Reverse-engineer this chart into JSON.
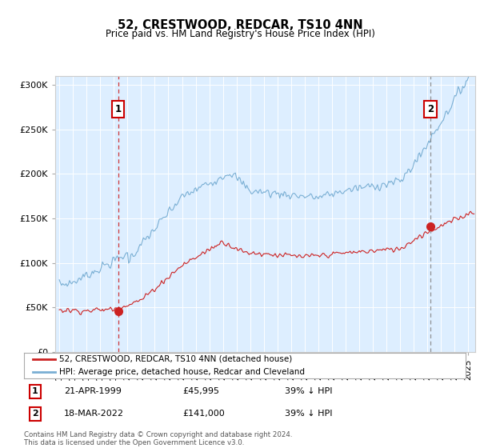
{
  "title": "52, CRESTWOOD, REDCAR, TS10 4NN",
  "subtitle": "Price paid vs. HM Land Registry's House Price Index (HPI)",
  "ylabel_ticks": [
    "£0",
    "£50K",
    "£100K",
    "£150K",
    "£200K",
    "£250K",
    "£300K"
  ],
  "ytick_values": [
    0,
    50000,
    100000,
    150000,
    200000,
    250000,
    300000
  ],
  "ylim": [
    0,
    310000
  ],
  "xlim_start": 1994.7,
  "xlim_end": 2025.5,
  "sale1_year": 1999.31,
  "sale1_price": 45995,
  "sale2_year": 2022.21,
  "sale2_price": 141000,
  "sale1_date": "21-APR-1999",
  "sale1_pct": "39% ↓ HPI",
  "sale2_date": "18-MAR-2022",
  "sale2_pct": "39% ↓ HPI",
  "hpi_color": "#7aafd4",
  "price_color": "#cc2222",
  "sale1_vline_color": "#cc2222",
  "sale2_vline_color": "#888888",
  "bg_color": "#ddeeff",
  "legend_label1": "52, CRESTWOOD, REDCAR, TS10 4NN (detached house)",
  "legend_label2": "HPI: Average price, detached house, Redcar and Cleveland",
  "footer": "Contains HM Land Registry data © Crown copyright and database right 2024.\nThis data is licensed under the Open Government Licence v3.0."
}
